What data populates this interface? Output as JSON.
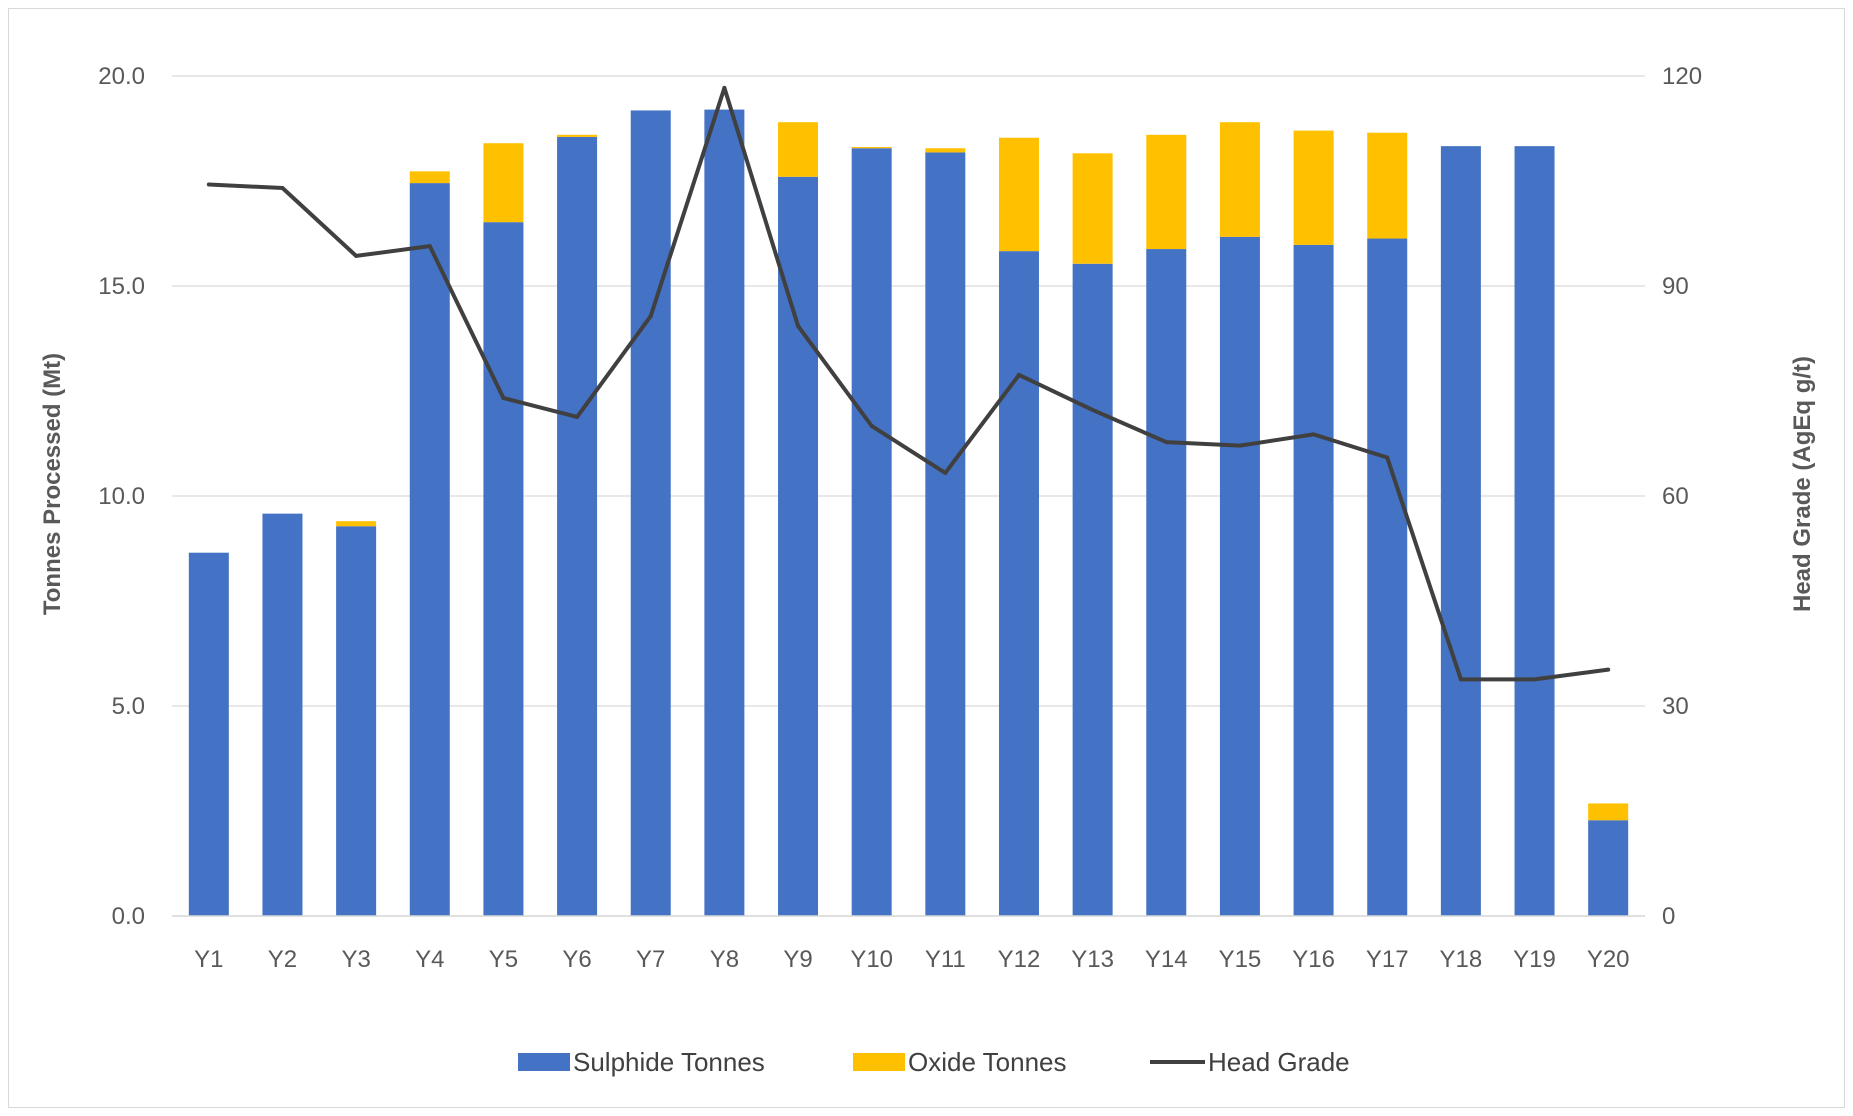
{
  "chart_data": {
    "type": "bar",
    "stacked": true,
    "categories": [
      "Y1",
      "Y2",
      "Y3",
      "Y4",
      "Y5",
      "Y6",
      "Y7",
      "Y8",
      "Y9",
      "Y10",
      "Y11",
      "Y12",
      "Y13",
      "Y14",
      "Y15",
      "Y16",
      "Y17",
      "Y18",
      "Y19",
      "Y20"
    ],
    "series": [
      {
        "name": "Sulphide Tonnes",
        "type": "bar",
        "axis": "left",
        "color": "#4472C4",
        "values": [
          8.65,
          9.58,
          9.28,
          17.45,
          16.52,
          18.55,
          19.18,
          19.2,
          17.6,
          18.28,
          18.18,
          15.83,
          15.53,
          15.88,
          16.17,
          15.98,
          16.13,
          18.33,
          18.33,
          2.28
        ]
      },
      {
        "name": "Oxide Tonnes",
        "type": "bar",
        "axis": "left",
        "color": "#FFC000",
        "values": [
          0,
          0,
          0.12,
          0.28,
          1.88,
          0.05,
          0,
          0,
          1.3,
          0.03,
          0.1,
          2.7,
          2.63,
          2.72,
          2.73,
          2.72,
          2.52,
          0,
          0,
          0.4
        ]
      },
      {
        "name": "Head Grade",
        "type": "line",
        "axis": "right",
        "color": "#404040",
        "values": [
          104.5,
          104.0,
          94.3,
          95.7,
          74.0,
          71.3,
          85.7,
          118.3,
          84.3,
          70.0,
          63.3,
          77.3,
          72.3,
          67.7,
          67.2,
          68.8,
          65.5,
          33.8,
          33.8,
          35.2
        ]
      }
    ],
    "ylabel": "Tonnes Processed (Mt)",
    "y2label": "Head Grade (AgEq g/t)",
    "ylim": [
      0,
      20
    ],
    "y2lim": [
      0,
      120
    ],
    "yticks": [
      "0.0",
      "5.0",
      "10.0",
      "15.0",
      "20.0"
    ],
    "y2ticks": [
      "0",
      "30",
      "60",
      "90",
      "120"
    ],
    "grid": true,
    "legend_position": "bottom"
  }
}
